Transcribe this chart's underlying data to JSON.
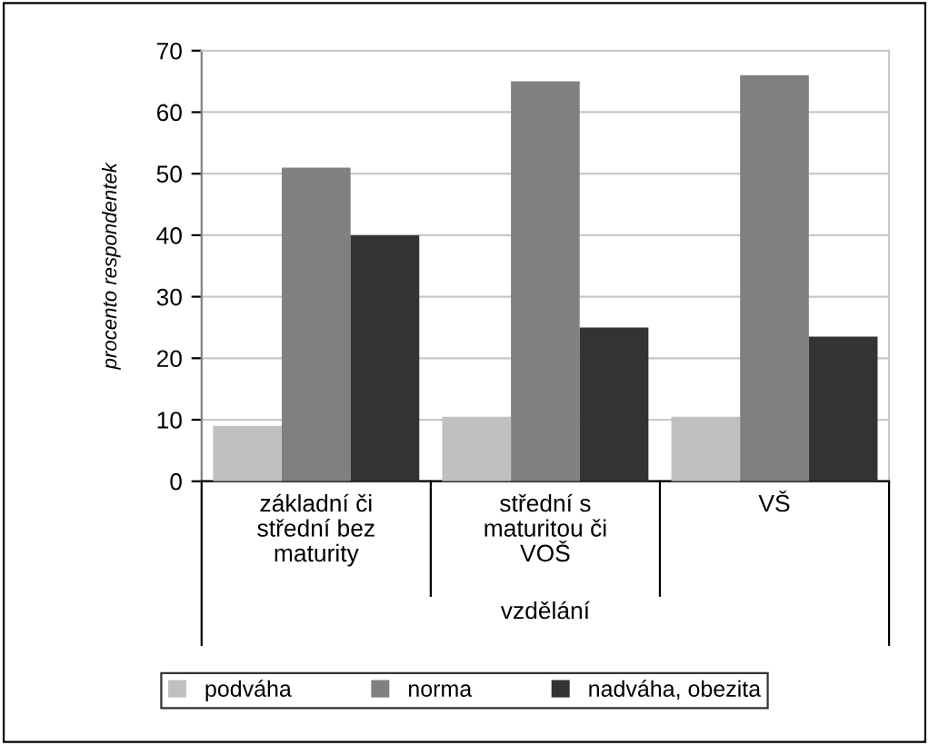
{
  "chart_data": {
    "type": "bar",
    "xlabel": "vzdělání",
    "ylabel": "procento respondentek",
    "categories": [
      "základní či\nstřední bez\nmaturity",
      "střední s\nmaturitou či\nVOŠ",
      "VŠ"
    ],
    "series": [
      {
        "name": "podváha",
        "color": "#c0c0c0",
        "values": [
          9,
          10.5,
          10.5
        ]
      },
      {
        "name": "norma",
        "color": "#808080",
        "values": [
          51,
          65,
          66
        ]
      },
      {
        "name": "nadváha, obezita",
        "color": "#333333",
        "values": [
          40,
          25,
          23.5
        ]
      }
    ],
    "ylim": [
      0,
      70
    ],
    "yticks": [
      0,
      10,
      20,
      30,
      40,
      50,
      60,
      70
    ],
    "grid": "y",
    "legend": "bottom"
  }
}
